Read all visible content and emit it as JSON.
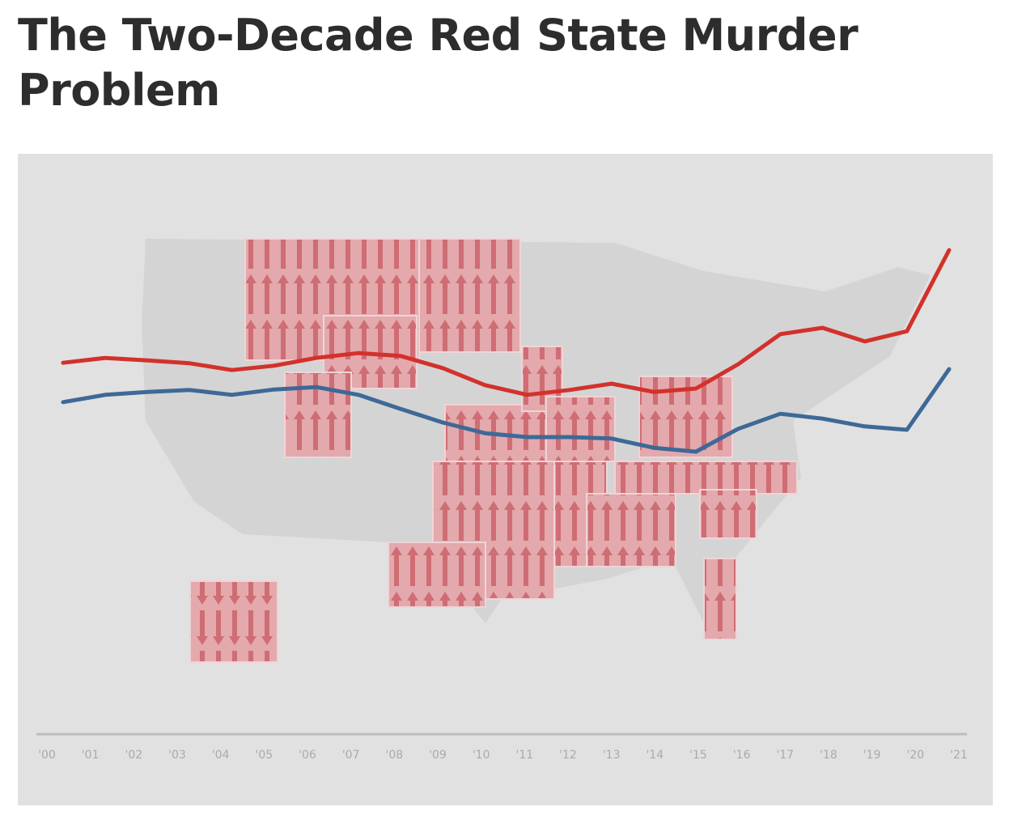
{
  "chart_data": {
    "type": "line",
    "title": "The Two-Decade Red State Murder Problem",
    "categories": [
      "'00",
      "'01",
      "'02",
      "'03",
      "'04",
      "'05",
      "'06",
      "'07",
      "'08",
      "'09",
      "'10",
      "'11",
      "'12",
      "'13",
      "'14",
      "'15",
      "'16",
      "'17",
      "'18",
      "'19",
      "'20",
      "'21"
    ],
    "series": [
      {
        "color": "#d3312b",
        "values": [
          7.53,
          7.63,
          7.58,
          7.52,
          7.38,
          7.47,
          7.63,
          7.73,
          7.67,
          7.42,
          7.07,
          6.87,
          6.97,
          7.1,
          6.93,
          7.0,
          7.5,
          8.12,
          8.25,
          7.97,
          8.18,
          9.85
        ]
      },
      {
        "color": "#3e6997",
        "values": [
          6.72,
          6.87,
          6.93,
          6.97,
          6.87,
          6.98,
          7.03,
          6.87,
          6.58,
          6.3,
          6.08,
          6.0,
          6.0,
          5.97,
          5.78,
          5.7,
          6.17,
          6.48,
          6.38,
          6.22,
          6.15,
          7.4
        ]
      }
    ],
    "ylim": [
      0,
      10
    ]
  }
}
